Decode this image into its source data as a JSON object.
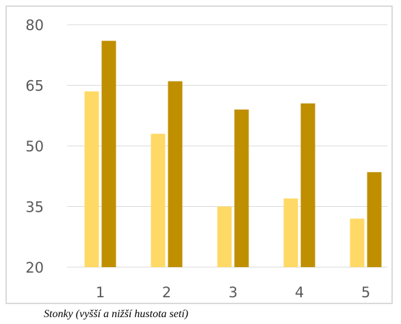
{
  "chart_data": {
    "type": "bar",
    "categories": [
      "1",
      "2",
      "3",
      "4",
      "5"
    ],
    "series": [
      {
        "values": [
          63.5,
          53,
          35,
          37,
          32
        ],
        "color": "#ffd966"
      },
      {
        "values": [
          76,
          66,
          59,
          60.5,
          43.5
        ],
        "color": "#bf8f00"
      }
    ],
    "ylim": [
      20,
      80
    ],
    "yticks": [
      "20",
      "35",
      "50",
      "65",
      "80"
    ],
    "grid": true,
    "legend": "none"
  },
  "caption": "Stonky (vyšší a nižší hustota setí)"
}
